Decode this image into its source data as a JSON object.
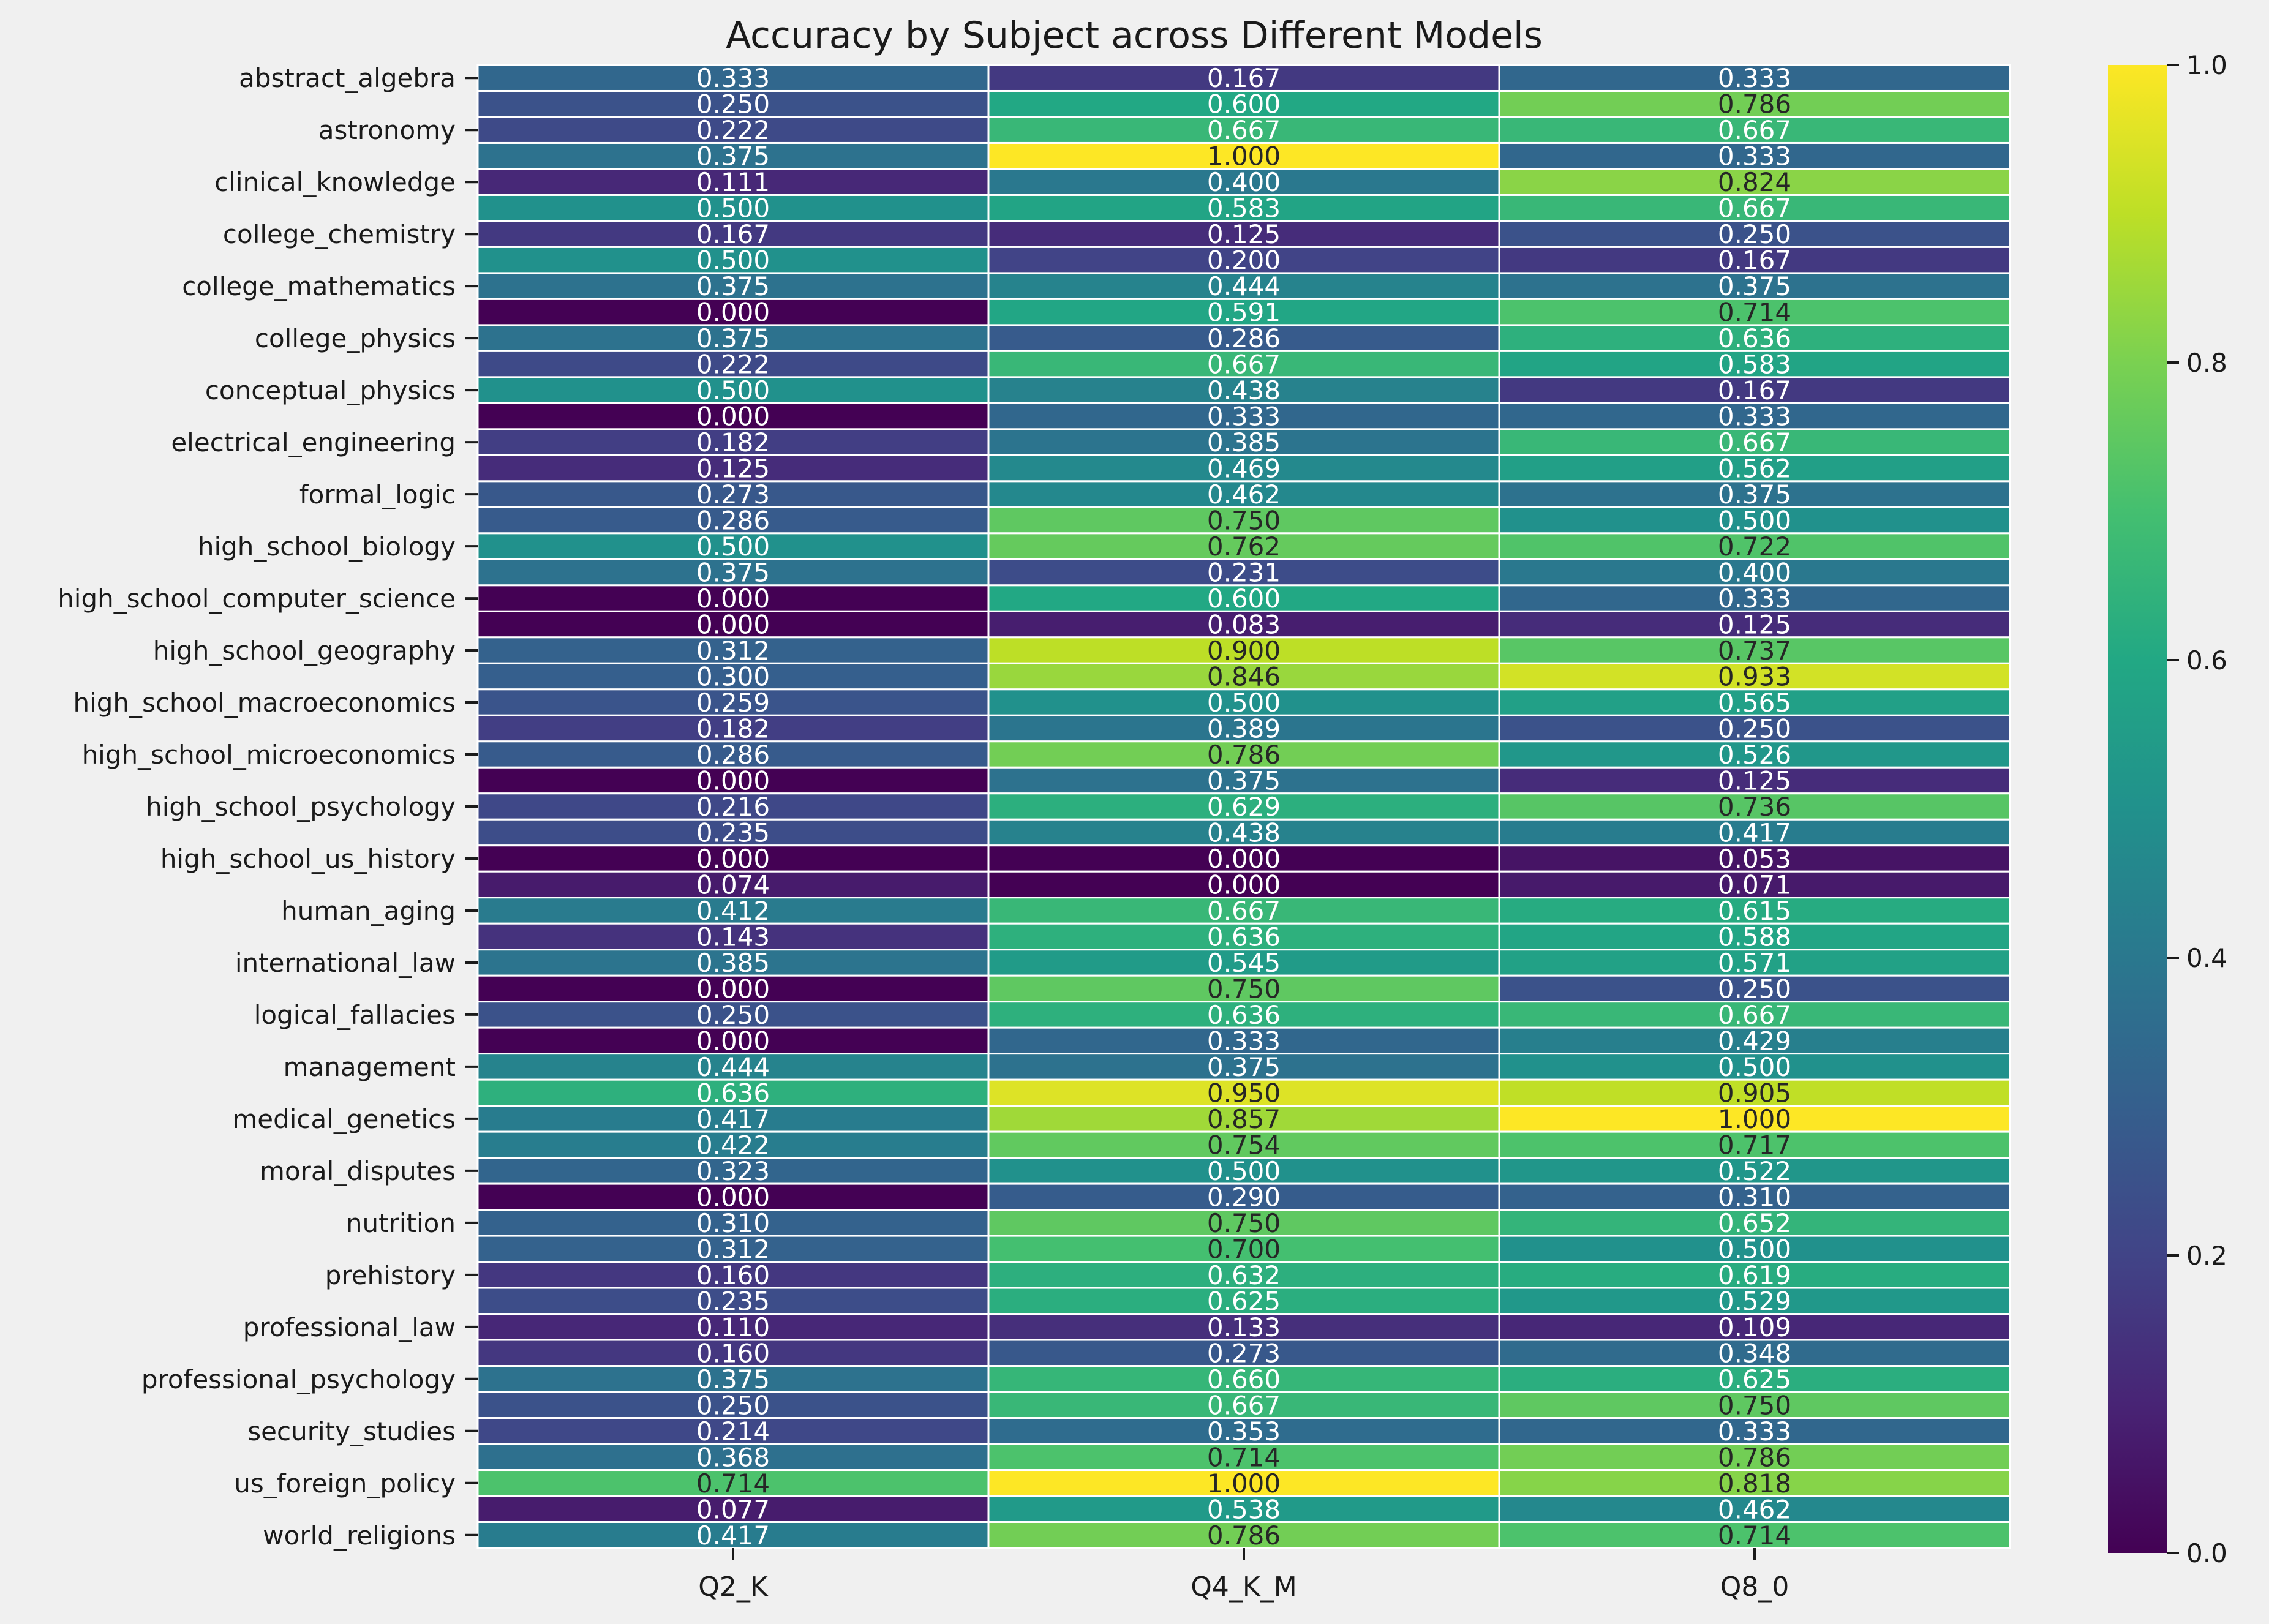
{
  "chart_data": {
    "type": "heatmap",
    "title": "Accuracy by Subject across Different Models",
    "xlabel": "",
    "ylabel": "",
    "columns": [
      "Q2_K",
      "Q4_K_M",
      "Q8_0"
    ],
    "row_tick_labels": [
      "abstract_algebra",
      "astronomy",
      "clinical_knowledge",
      "college_chemistry",
      "college_mathematics",
      "college_physics",
      "conceptual_physics",
      "electrical_engineering",
      "formal_logic",
      "high_school_biology",
      "high_school_computer_science",
      "high_school_geography",
      "high_school_macroeconomics",
      "high_school_microeconomics",
      "high_school_psychology",
      "high_school_us_history",
      "human_aging",
      "international_law",
      "logical_fallacies",
      "management",
      "medical_genetics",
      "moral_disputes",
      "nutrition",
      "prehistory",
      "professional_law",
      "professional_psychology",
      "security_studies",
      "us_foreign_policy",
      "world_religions"
    ],
    "values": [
      [
        0.333,
        0.167,
        0.333
      ],
      [
        0.25,
        0.6,
        0.786
      ],
      [
        0.222,
        0.667,
        0.667
      ],
      [
        0.375,
        1.0,
        0.333
      ],
      [
        0.111,
        0.4,
        0.824
      ],
      [
        0.5,
        0.583,
        0.667
      ],
      [
        0.167,
        0.125,
        0.25
      ],
      [
        0.5,
        0.2,
        0.167
      ],
      [
        0.375,
        0.444,
        0.375
      ],
      [
        0.0,
        0.591,
        0.714
      ],
      [
        0.375,
        0.286,
        0.636
      ],
      [
        0.222,
        0.667,
        0.583
      ],
      [
        0.5,
        0.438,
        0.167
      ],
      [
        0.0,
        0.333,
        0.333
      ],
      [
        0.182,
        0.385,
        0.667
      ],
      [
        0.125,
        0.469,
        0.562
      ],
      [
        0.273,
        0.462,
        0.375
      ],
      [
        0.286,
        0.75,
        0.5
      ],
      [
        0.5,
        0.762,
        0.722
      ],
      [
        0.375,
        0.231,
        0.4
      ],
      [
        0.0,
        0.6,
        0.333
      ],
      [
        0.0,
        0.083,
        0.125
      ],
      [
        0.312,
        0.9,
        0.737
      ],
      [
        0.3,
        0.846,
        0.933
      ],
      [
        0.259,
        0.5,
        0.565
      ],
      [
        0.182,
        0.389,
        0.25
      ],
      [
        0.286,
        0.786,
        0.526
      ],
      [
        0.0,
        0.375,
        0.125
      ],
      [
        0.216,
        0.629,
        0.736
      ],
      [
        0.235,
        0.438,
        0.417
      ],
      [
        0.0,
        0.0,
        0.053
      ],
      [
        0.074,
        0.0,
        0.071
      ],
      [
        0.412,
        0.667,
        0.615
      ],
      [
        0.143,
        0.636,
        0.588
      ],
      [
        0.385,
        0.545,
        0.571
      ],
      [
        0.0,
        0.75,
        0.25
      ],
      [
        0.25,
        0.636,
        0.667
      ],
      [
        0.0,
        0.333,
        0.429
      ],
      [
        0.444,
        0.375,
        0.5
      ],
      [
        0.636,
        0.95,
        0.905
      ],
      [
        0.417,
        0.857,
        1.0
      ],
      [
        0.422,
        0.754,
        0.717
      ],
      [
        0.323,
        0.5,
        0.522
      ],
      [
        0.0,
        0.29,
        0.31
      ],
      [
        0.31,
        0.75,
        0.652
      ],
      [
        0.312,
        0.7,
        0.5
      ],
      [
        0.16,
        0.632,
        0.619
      ],
      [
        0.235,
        0.625,
        0.529
      ],
      [
        0.11,
        0.133,
        0.109
      ],
      [
        0.16,
        0.273,
        0.348
      ],
      [
        0.375,
        0.66,
        0.625
      ],
      [
        0.25,
        0.667,
        0.75
      ],
      [
        0.214,
        0.353,
        0.333
      ],
      [
        0.368,
        0.714,
        0.786
      ],
      [
        0.714,
        1.0,
        0.818
      ],
      [
        0.077,
        0.538,
        0.462
      ],
      [
        0.417,
        0.786,
        0.714
      ]
    ],
    "colormap": "viridis",
    "vmin": 0.0,
    "vmax": 1.0,
    "colorbar_ticks": [
      "0.0",
      "0.2",
      "0.4",
      "0.6",
      "0.8",
      "1.0"
    ],
    "value_format": "3 decimals",
    "grid": "white cell borders",
    "colorbar_position": "right"
  },
  "colors": {
    "background": "#f0f0f0",
    "text": "#1a1a1a",
    "cell_border": "#ffffff"
  }
}
